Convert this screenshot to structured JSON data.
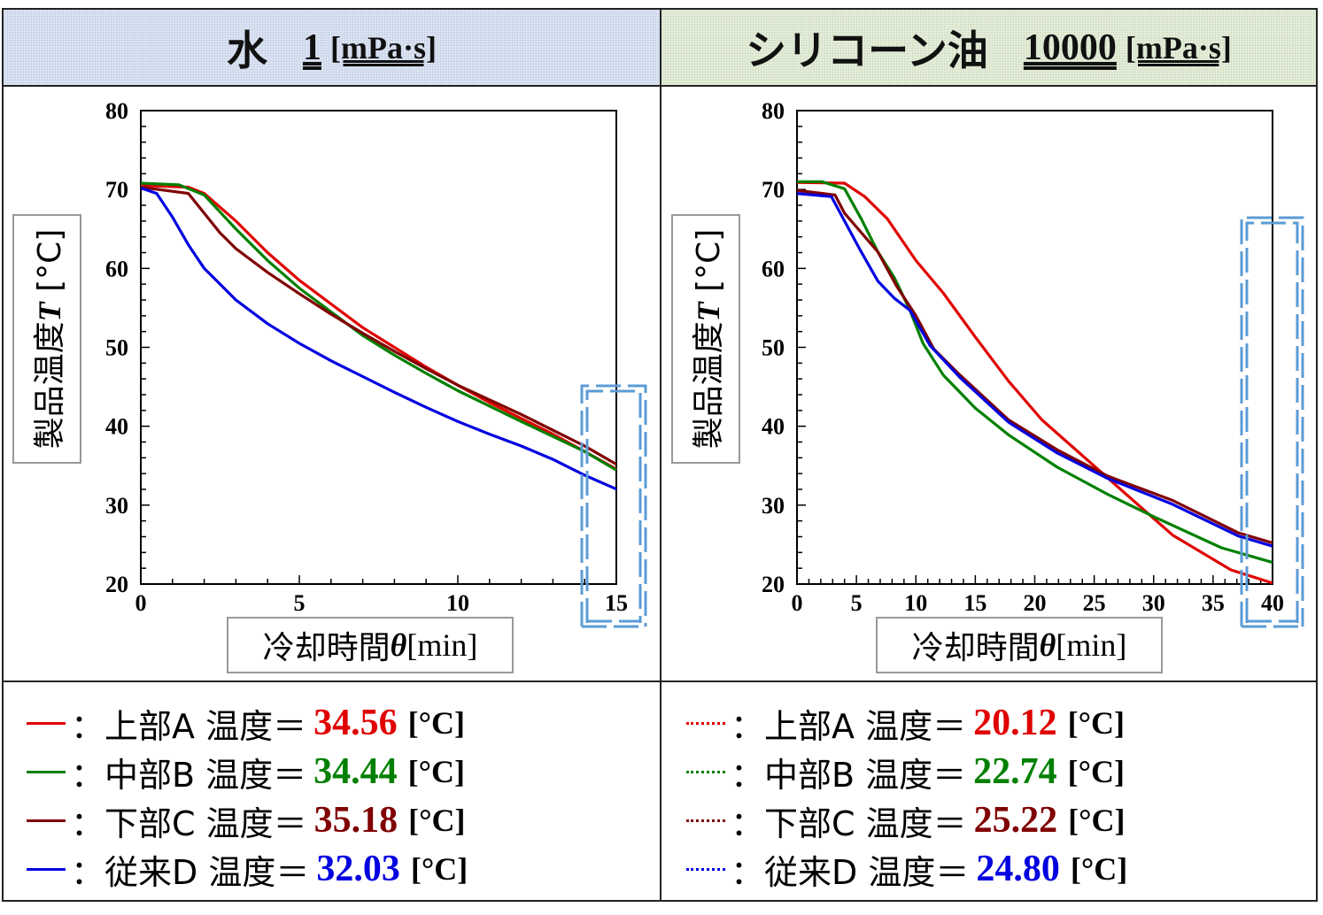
{
  "panels": [
    {
      "fluid": "水",
      "viscosity": "1",
      "viscosity_unit": "[mPa·s]",
      "legend": [
        {
          "label": "上部A 温度＝",
          "value": "34.56",
          "unit": "[°C]",
          "color": "#e00000",
          "line": "solid"
        },
        {
          "label": "中部B 温度＝",
          "value": "34.44",
          "unit": "[°C]",
          "color": "#008000",
          "line": "solid"
        },
        {
          "label": "下部C 温度＝",
          "value": "35.18",
          "unit": "[°C]",
          "color": "#800000",
          "line": "solid"
        },
        {
          "label": "従来D 温度＝",
          "value": "32.03",
          "unit": "[°C]",
          "color": "#0000e0",
          "line": "solid"
        }
      ]
    },
    {
      "fluid": "シリコーン油",
      "viscosity": "10000",
      "viscosity_unit": "[mPa·s]",
      "legend": [
        {
          "label": "上部A 温度＝",
          "value": "20.12",
          "unit": "[°C]",
          "color": "#e00000",
          "line": "dotted"
        },
        {
          "label": "中部B 温度＝",
          "value": "22.74",
          "unit": "[°C]",
          "color": "#008000",
          "line": "dotted"
        },
        {
          "label": "下部C 温度＝",
          "value": "25.22",
          "unit": "[°C]",
          "color": "#800000",
          "line": "dotted"
        },
        {
          "label": "従来D 温度＝",
          "value": "24.80",
          "unit": "[°C]",
          "color": "#0000e0",
          "line": "dotted"
        }
      ]
    }
  ],
  "legend_sep": "：",
  "axis_labels": {
    "y_prefix": "製品温度",
    "y_symbol": "T",
    "y_unit": " [°C]",
    "x_prefix": "冷却時間",
    "x_symbol": "θ",
    "x_unit": " [min]"
  },
  "highlight_color": "#5b9bd5",
  "chart_data": [
    {
      "type": "line",
      "xlim": [
        0,
        15
      ],
      "ylim": [
        20,
        80
      ],
      "xticks": [
        0,
        5,
        10,
        15
      ],
      "yticks": [
        20,
        30,
        40,
        50,
        60,
        70,
        80
      ],
      "grid": false,
      "series": [
        {
          "name": "上部A",
          "color": "#e00000",
          "x": [
            0,
            1.5,
            2,
            3,
            4,
            5,
            6,
            7,
            8,
            9,
            10,
            11,
            12,
            13,
            14,
            15
          ],
          "y": [
            70.5,
            70.3,
            69.5,
            66,
            62,
            58.5,
            55.5,
            52.5,
            50,
            47.5,
            45.2,
            43,
            41,
            39,
            36.8,
            34.56
          ]
        },
        {
          "name": "中部B",
          "color": "#008000",
          "x": [
            0,
            1.2,
            2,
            3,
            4,
            5,
            6,
            7,
            8,
            9,
            10,
            12,
            14,
            15
          ],
          "y": [
            70.8,
            70.6,
            69.3,
            65,
            61,
            57.5,
            54.5,
            51.5,
            49,
            46.7,
            44.5,
            40.6,
            36.8,
            34.44
          ]
        },
        {
          "name": "下部C",
          "color": "#800000",
          "x": [
            0,
            1.5,
            2,
            2.5,
            3,
            4,
            5,
            6,
            7,
            8,
            9,
            10,
            12,
            14,
            15
          ],
          "y": [
            70.3,
            69.5,
            67,
            64.5,
            62.5,
            59.5,
            56.8,
            54.2,
            51.8,
            49.5,
            47.3,
            45.2,
            41.5,
            37.5,
            35.18
          ]
        },
        {
          "name": "従来D",
          "color": "#0000e0",
          "x": [
            0,
            0.5,
            1,
            1.5,
            2,
            3,
            4,
            5,
            6,
            7,
            8,
            9,
            10,
            11,
            12,
            13,
            14,
            15
          ],
          "y": [
            70.2,
            69.5,
            66.5,
            63,
            60,
            56,
            53,
            50.5,
            48.3,
            46.3,
            44.3,
            42.4,
            40.6,
            39,
            37.5,
            35.8,
            33.8,
            32.03
          ]
        }
      ]
    },
    {
      "type": "line",
      "xlim": [
        0,
        40
      ],
      "ylim": [
        20,
        80
      ],
      "xticks": [
        0,
        5,
        10,
        15,
        20,
        25,
        30,
        35,
        40
      ],
      "yticks": [
        20,
        30,
        40,
        50,
        60,
        70,
        80
      ],
      "grid": false,
      "series": [
        {
          "name": "上部A",
          "color": "#e00000",
          "x": [
            0,
            4,
            5.7,
            7.6,
            10,
            12.3,
            15,
            17.8,
            20.6,
            24.9,
            28.8,
            31.6,
            36.5,
            40
          ],
          "y": [
            70.9,
            70.8,
            69.1,
            66.3,
            61,
            56.9,
            51.3,
            45.7,
            40.8,
            35.1,
            29.9,
            26.2,
            21.8,
            20.12
          ]
        },
        {
          "name": "中部B",
          "color": "#008000",
          "x": [
            0,
            2.1,
            4,
            5.4,
            6.8,
            8.2,
            9.5,
            10.6,
            12.3,
            15,
            17.8,
            21.9,
            26.1,
            30.2,
            35.7,
            40
          ],
          "y": [
            71,
            71,
            70.1,
            66.3,
            62.1,
            58.8,
            54.7,
            50.5,
            46.5,
            42.3,
            38.9,
            34.8,
            31.4,
            28.4,
            24.6,
            22.74
          ]
        },
        {
          "name": "下部C",
          "color": "#800000",
          "x": [
            0,
            3.2,
            4,
            6.8,
            8.4,
            10,
            11.5,
            13.7,
            17.8,
            21.9,
            26.1,
            31.6,
            37.1,
            40
          ],
          "y": [
            69.9,
            69.3,
            67,
            62.1,
            57.7,
            54,
            49.8,
            46.5,
            40.8,
            37,
            33.7,
            30.6,
            26.5,
            25.22
          ]
        },
        {
          "name": "従来D",
          "color": "#0000e0",
          "x": [
            0,
            2.9,
            4,
            5.4,
            6.8,
            8.2,
            9.5,
            11.2,
            13.7,
            17.8,
            21.9,
            26.1,
            31.6,
            37.1,
            40
          ],
          "y": [
            69.5,
            69.1,
            66,
            62.1,
            58.4,
            56.2,
            54.7,
            50.2,
            46.2,
            40.5,
            36.6,
            33.4,
            30.1,
            26.1,
            24.8
          ]
        }
      ]
    }
  ]
}
